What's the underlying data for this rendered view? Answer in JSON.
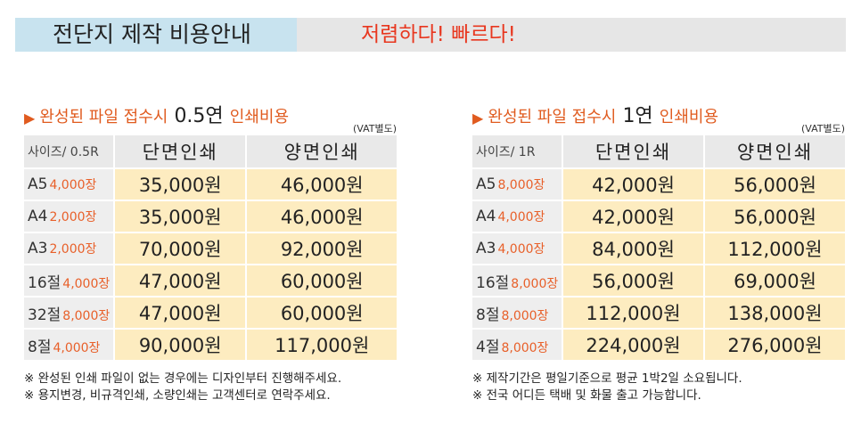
{
  "banner": {
    "title": "전단지 제작 비용안내",
    "slogan": "저렴하다! 빠르다!"
  },
  "sections": [
    {
      "heading_prefix": "완성된 파일 접수시",
      "heading_qty": "0.5연",
      "heading_suffix": "인쇄비용",
      "vat": "(VAT별도)",
      "col_size": "사이즈/ 0.5R",
      "col_single": "단면인쇄",
      "col_double": "양면인쇄",
      "rows": [
        {
          "size": "A5",
          "qty": "4,000장",
          "single": "35,000원",
          "double": "46,000원"
        },
        {
          "size": "A4",
          "qty": "2,000장",
          "single": "35,000원",
          "double": "46,000원"
        },
        {
          "size": "A3",
          "qty": "2,000장",
          "single": "70,000원",
          "double": "92,000원"
        },
        {
          "size": "16절",
          "qty": "4,000장",
          "single": "47,000원",
          "double": "60,000원"
        },
        {
          "size": "32절",
          "qty": "8,000장",
          "single": "47,000원",
          "double": "60,000원"
        },
        {
          "size": "8절",
          "qty": "4,000장",
          "single": "90,000원",
          "double": "117,000원"
        }
      ],
      "notes": [
        "※ 완성된 인쇄 파일이 없는 경우에는 디자인부터 진행해주세요.",
        "※ 용지변경, 비규격인쇄, 소량인쇄는 고객센터로 연락주세요."
      ]
    },
    {
      "heading_prefix": "완성된 파일 접수시",
      "heading_qty": "1연",
      "heading_suffix": "인쇄비용",
      "vat": "(VAT별도)",
      "col_size": "사이즈/ 1R",
      "col_single": "단면인쇄",
      "col_double": "양면인쇄",
      "rows": [
        {
          "size": "A5",
          "qty": "8,000장",
          "single": "42,000원",
          "double": "56,000원"
        },
        {
          "size": "A4",
          "qty": "4,000장",
          "single": "42,000원",
          "double": "56,000원"
        },
        {
          "size": "A3",
          "qty": "4,000장",
          "single": "84,000원",
          "double": "112,000원"
        },
        {
          "size": "16절",
          "qty": "8,000장",
          "single": "56,000원",
          "double": "69,000원"
        },
        {
          "size": "8절",
          "qty": "8,000장",
          "single": "112,000원",
          "double": "138,000원"
        },
        {
          "size": "4절",
          "qty": "8,000장",
          "single": "224,000원",
          "double": "276,000원"
        }
      ],
      "notes": [
        "※ 제작기간은 평일기준으로 평균 1박2일 소요됩니다.",
        "※ 전국 어디든 택배 및 화물 출고 가능합니다."
      ]
    }
  ],
  "colors": {
    "accent": "#e05b1f",
    "slogan": "#e8371f",
    "banner_bg": "#e6e6e6",
    "title_bg": "#c8e3ef",
    "price_bg": "#fdecc0",
    "header_bg": "#e9e9e9"
  }
}
